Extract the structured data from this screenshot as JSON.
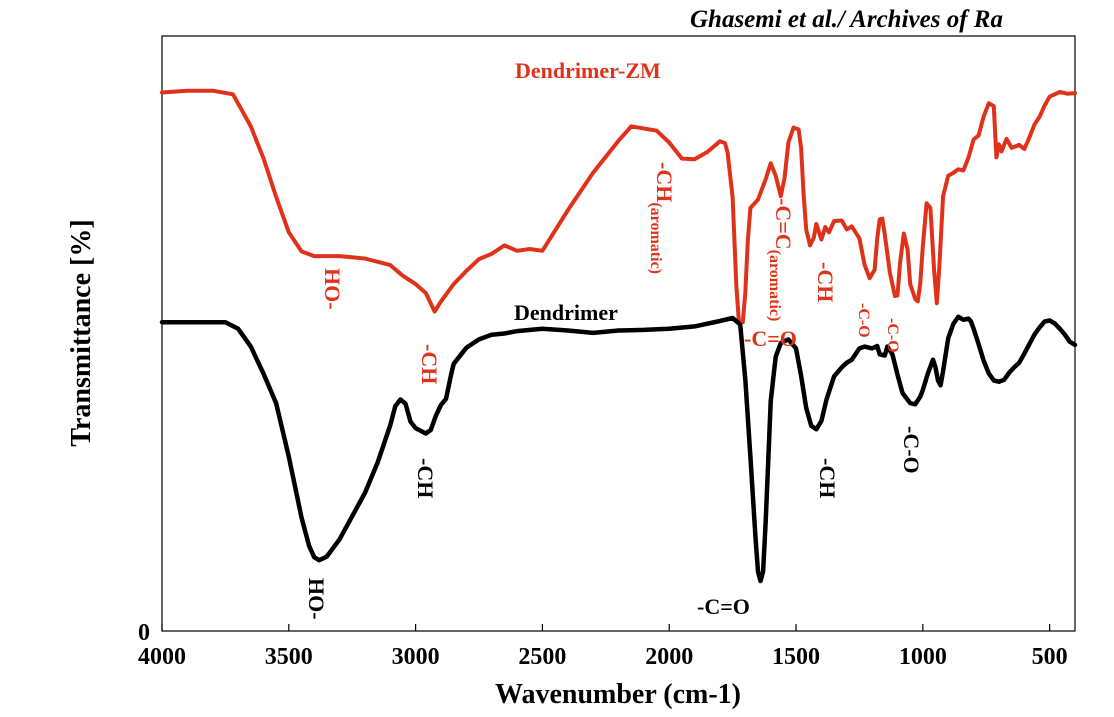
{
  "header": {
    "running_head": "Ghasemi et al./ Archives of Ra"
  },
  "colors": {
    "dendrimer_zm": "#e0321a",
    "dendrimer": "#000000",
    "axes": "#000000"
  },
  "chart_data": {
    "type": "line",
    "title": "",
    "xlabel": "Wavenumber (cm-1)",
    "ylabel": "Transmittance [%]",
    "xlim": [
      4000,
      400
    ],
    "x_reversed": true,
    "ylim": [
      0,
      100
    ],
    "x_ticks": [
      4000,
      3500,
      3000,
      2500,
      2000,
      1500,
      1000,
      500
    ],
    "y_tick_labels": [
      {
        "value": 0,
        "label": "0"
      }
    ],
    "grid": false,
    "legend": "none (series labelled directly on plot)",
    "series": [
      {
        "name": "Dendrimer-ZM",
        "color": "#e0321a",
        "points": [
          [
            4000,
            90.5
          ],
          [
            3900,
            90.8
          ],
          [
            3800,
            90.8
          ],
          [
            3720,
            90.2
          ],
          [
            3650,
            84.8
          ],
          [
            3600,
            79.5
          ],
          [
            3550,
            73.0
          ],
          [
            3500,
            67.0
          ],
          [
            3450,
            63.8
          ],
          [
            3400,
            63.0
          ],
          [
            3300,
            63.0
          ],
          [
            3200,
            62.6
          ],
          [
            3100,
            61.5
          ],
          [
            3050,
            59.7
          ],
          [
            3000,
            58.3
          ],
          [
            2960,
            56.8
          ],
          [
            2925,
            53.7
          ],
          [
            2900,
            55.4
          ],
          [
            2850,
            58.3
          ],
          [
            2800,
            60.5
          ],
          [
            2750,
            62.5
          ],
          [
            2700,
            63.4
          ],
          [
            2650,
            64.8
          ],
          [
            2600,
            63.9
          ],
          [
            2550,
            64.2
          ],
          [
            2500,
            63.9
          ],
          [
            2400,
            70.7
          ],
          [
            2300,
            77.0
          ],
          [
            2200,
            82.4
          ],
          [
            2150,
            84.8
          ],
          [
            2050,
            84.1
          ],
          [
            2000,
            82.1
          ],
          [
            1950,
            79.4
          ],
          [
            1900,
            79.3
          ],
          [
            1850,
            80.5
          ],
          [
            1800,
            82.3
          ],
          [
            1780,
            82.0
          ],
          [
            1770,
            80.4
          ],
          [
            1750,
            72.9
          ],
          [
            1735,
            57.8
          ],
          [
            1725,
            51.8
          ],
          [
            1710,
            51.9
          ],
          [
            1700,
            56.8
          ],
          [
            1690,
            65.6
          ],
          [
            1680,
            71.1
          ],
          [
            1650,
            72.5
          ],
          [
            1620,
            75.9
          ],
          [
            1600,
            78.6
          ],
          [
            1580,
            76.5
          ],
          [
            1560,
            73.1
          ],
          [
            1545,
            76.2
          ],
          [
            1530,
            82.1
          ],
          [
            1510,
            84.6
          ],
          [
            1490,
            84.3
          ],
          [
            1480,
            81.2
          ],
          [
            1470,
            73.4
          ],
          [
            1460,
            67.5
          ],
          [
            1445,
            64.8
          ],
          [
            1430,
            66.1
          ],
          [
            1420,
            68.4
          ],
          [
            1400,
            65.8
          ],
          [
            1385,
            67.9
          ],
          [
            1370,
            67.0
          ],
          [
            1350,
            68.9
          ],
          [
            1320,
            69.0
          ],
          [
            1300,
            67.5
          ],
          [
            1280,
            68.0
          ],
          [
            1250,
            66.0
          ],
          [
            1230,
            61.6
          ],
          [
            1210,
            59.3
          ],
          [
            1190,
            60.7
          ],
          [
            1180,
            65.9
          ],
          [
            1170,
            69.2
          ],
          [
            1160,
            69.3
          ],
          [
            1150,
            66.6
          ],
          [
            1130,
            60.2
          ],
          [
            1110,
            56.3
          ],
          [
            1100,
            56.4
          ],
          [
            1090,
            61.8
          ],
          [
            1075,
            66.8
          ],
          [
            1060,
            64.1
          ],
          [
            1050,
            58.3
          ],
          [
            1030,
            55.8
          ],
          [
            1020,
            55.4
          ],
          [
            1010,
            58.5
          ],
          [
            1000,
            64.6
          ],
          [
            985,
            71.9
          ],
          [
            970,
            71.1
          ],
          [
            955,
            60.4
          ],
          [
            945,
            55.1
          ],
          [
            935,
            61.1
          ],
          [
            920,
            73.1
          ],
          [
            900,
            76.5
          ],
          [
            880,
            77.0
          ],
          [
            860,
            77.6
          ],
          [
            840,
            77.4
          ],
          [
            820,
            79.6
          ],
          [
            800,
            82.6
          ],
          [
            780,
            83.3
          ],
          [
            760,
            86.5
          ],
          [
            740,
            88.7
          ],
          [
            720,
            88.2
          ],
          [
            710,
            79.6
          ],
          [
            700,
            81.8
          ],
          [
            690,
            80.6
          ],
          [
            670,
            82.7
          ],
          [
            650,
            81.2
          ],
          [
            620,
            81.7
          ],
          [
            600,
            81.0
          ],
          [
            580,
            82.9
          ],
          [
            560,
            85.1
          ],
          [
            540,
            86.4
          ],
          [
            520,
            88.3
          ],
          [
            500,
            89.8
          ],
          [
            460,
            90.6
          ],
          [
            430,
            90.3
          ],
          [
            400,
            90.4
          ]
        ],
        "annotations": [
          {
            "label": "HO-",
            "x": 3420
          },
          {
            "label": "-CH",
            "x": 2950
          },
          {
            "label": "-CH(aromatic)",
            "text": "-CH",
            "sub": "(aromatic)",
            "x": 2000
          },
          {
            "label": "-C=C(aromatic)",
            "text": "-C=C",
            "sub": "(aromatic)",
            "x": 1575
          },
          {
            "label": "-CH",
            "x": 1390
          },
          {
            "label": "-C=O",
            "x": 1620
          },
          {
            "label": "-C-O",
            "x": 1220
          },
          {
            "label": "-C-O",
            "x": 1110
          }
        ]
      },
      {
        "name": "Dendrimer",
        "color": "#000000",
        "points": [
          [
            4000,
            51.9
          ],
          [
            3900,
            51.9
          ],
          [
            3800,
            51.9
          ],
          [
            3750,
            51.9
          ],
          [
            3700,
            50.8
          ],
          [
            3650,
            47.8
          ],
          [
            3600,
            43.3
          ],
          [
            3550,
            38.3
          ],
          [
            3500,
            29.3
          ],
          [
            3450,
            19.1
          ],
          [
            3420,
            14.3
          ],
          [
            3400,
            12.4
          ],
          [
            3380,
            11.9
          ],
          [
            3350,
            12.5
          ],
          [
            3300,
            15.4
          ],
          [
            3250,
            19.3
          ],
          [
            3200,
            23.2
          ],
          [
            3150,
            28.3
          ],
          [
            3100,
            34.6
          ],
          [
            3080,
            37.8
          ],
          [
            3060,
            38.9
          ],
          [
            3040,
            38.2
          ],
          [
            3020,
            35.2
          ],
          [
            3000,
            34.1
          ],
          [
            2960,
            33.2
          ],
          [
            2940,
            33.8
          ],
          [
            2920,
            36.2
          ],
          [
            2900,
            38.0
          ],
          [
            2880,
            39.0
          ],
          [
            2860,
            43.1
          ],
          [
            2850,
            44.9
          ],
          [
            2800,
            47.6
          ],
          [
            2750,
            49.0
          ],
          [
            2700,
            49.8
          ],
          [
            2650,
            50.0
          ],
          [
            2600,
            50.4
          ],
          [
            2500,
            50.8
          ],
          [
            2400,
            50.5
          ],
          [
            2300,
            50.1
          ],
          [
            2200,
            50.5
          ],
          [
            2100,
            50.6
          ],
          [
            2000,
            50.8
          ],
          [
            1900,
            51.2
          ],
          [
            1800,
            52.1
          ],
          [
            1750,
            52.6
          ],
          [
            1720,
            51.5
          ],
          [
            1700,
            42.3
          ],
          [
            1680,
            29.3
          ],
          [
            1660,
            15.7
          ],
          [
            1650,
            10.0
          ],
          [
            1640,
            8.4
          ],
          [
            1630,
            10.0
          ],
          [
            1620,
            18.1
          ],
          [
            1610,
            28.0
          ],
          [
            1600,
            38.6
          ],
          [
            1580,
            46.1
          ],
          [
            1560,
            48.4
          ],
          [
            1530,
            49.0
          ],
          [
            1500,
            47.5
          ],
          [
            1480,
            42.9
          ],
          [
            1460,
            37.5
          ],
          [
            1440,
            34.5
          ],
          [
            1420,
            33.9
          ],
          [
            1400,
            35.3
          ],
          [
            1380,
            38.9
          ],
          [
            1350,
            42.8
          ],
          [
            1320,
            44.3
          ],
          [
            1300,
            45.1
          ],
          [
            1280,
            45.6
          ],
          [
            1250,
            47.5
          ],
          [
            1230,
            47.8
          ],
          [
            1200,
            47.5
          ],
          [
            1180,
            47.9
          ],
          [
            1170,
            46.5
          ],
          [
            1150,
            46.3
          ],
          [
            1140,
            47.8
          ],
          [
            1120,
            46.5
          ],
          [
            1100,
            43.1
          ],
          [
            1080,
            40.0
          ],
          [
            1050,
            38.3
          ],
          [
            1030,
            38.1
          ],
          [
            1010,
            39.4
          ],
          [
            1000,
            40.5
          ],
          [
            980,
            43.3
          ],
          [
            960,
            45.6
          ],
          [
            950,
            44.3
          ],
          [
            940,
            42.1
          ],
          [
            930,
            41.3
          ],
          [
            920,
            43.7
          ],
          [
            900,
            49.2
          ],
          [
            880,
            51.6
          ],
          [
            860,
            52.8
          ],
          [
            840,
            52.3
          ],
          [
            820,
            52.5
          ],
          [
            810,
            52.0
          ],
          [
            800,
            50.8
          ],
          [
            780,
            48.2
          ],
          [
            760,
            45.4
          ],
          [
            740,
            43.3
          ],
          [
            720,
            42.1
          ],
          [
            700,
            41.9
          ],
          [
            680,
            42.2
          ],
          [
            660,
            43.4
          ],
          [
            640,
            44.3
          ],
          [
            620,
            45.1
          ],
          [
            600,
            46.6
          ],
          [
            580,
            48.2
          ],
          [
            560,
            49.8
          ],
          [
            540,
            51.0
          ],
          [
            520,
            52.0
          ],
          [
            500,
            52.2
          ],
          [
            480,
            51.7
          ],
          [
            460,
            50.8
          ],
          [
            440,
            49.8
          ],
          [
            420,
            48.6
          ],
          [
            400,
            48.1
          ]
        ],
        "annotations": [
          {
            "label": "HO-",
            "x": 3380
          },
          {
            "label": "-CH",
            "x": 2980
          },
          {
            "label": "-C=O",
            "x": 1640
          },
          {
            "label": "-CH",
            "x": 1420
          },
          {
            "label": "-C-O",
            "x": 1030
          }
        ]
      }
    ]
  }
}
